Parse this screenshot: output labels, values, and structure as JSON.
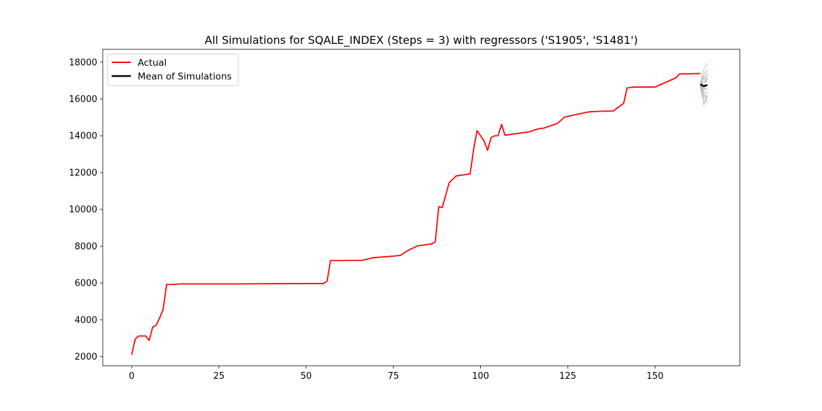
{
  "chart_data": {
    "type": "line",
    "title": "All Simulations for SQALE_INDEX (Steps = 3) with regressors ('S1905', 'S1481')",
    "xlabel": "",
    "ylabel": "",
    "xlim": [
      -8.3,
      174.3
    ],
    "ylim": [
      1500,
      18700
    ],
    "xticks": [
      0,
      25,
      50,
      75,
      100,
      125,
      150
    ],
    "yticks": [
      2000,
      4000,
      6000,
      8000,
      10000,
      12000,
      14000,
      16000,
      18000
    ],
    "legend": {
      "placement": "top-left",
      "entries": [
        "Actual",
        "Mean of Simulations"
      ]
    },
    "series": [
      {
        "name": "Actual",
        "color": "#ff0000",
        "x": [
          0,
          1,
          2,
          3,
          4,
          5,
          6,
          7,
          8,
          9,
          10,
          11,
          12,
          14,
          20,
          30,
          40,
          50,
          55,
          56,
          57,
          60,
          66,
          69,
          75,
          77,
          79,
          82,
          84,
          86,
          87,
          88,
          89,
          91,
          93,
          97,
          98,
          99,
          101,
          102,
          103,
          104,
          105,
          106,
          107,
          110,
          114,
          116,
          117,
          118,
          120,
          122,
          124,
          127,
          131,
          134,
          138,
          141,
          142,
          144,
          150,
          156,
          157,
          163
        ],
        "values": [
          2100,
          2950,
          3120,
          3120,
          3120,
          2880,
          3600,
          3700,
          4100,
          4560,
          5920,
          5920,
          5920,
          5950,
          5950,
          5950,
          5960,
          5970,
          5970,
          6100,
          7220,
          7220,
          7230,
          7370,
          7460,
          7500,
          7750,
          8020,
          8070,
          8130,
          8230,
          10150,
          10100,
          11450,
          11820,
          11930,
          13270,
          14280,
          13720,
          13210,
          13900,
          14000,
          14000,
          14620,
          14030,
          14110,
          14220,
          14350,
          14400,
          14410,
          14540,
          14670,
          15010,
          15140,
          15300,
          15330,
          15350,
          15760,
          16600,
          16650,
          16650,
          17150,
          17360,
          17380
        ]
      },
      {
        "name": "Mean of Simulations",
        "color": "#000000",
        "x": [
          163,
          164,
          165
        ],
        "values": [
          16800,
          16700,
          16760
        ]
      }
    ],
    "simulations": [
      {
        "color": "#7fbfbf",
        "x": [
          163,
          164,
          165
        ],
        "values": [
          16900,
          17600,
          17950
        ]
      },
      {
        "color": "#bf7fbf",
        "x": [
          163,
          164,
          165
        ],
        "values": [
          16850,
          17300,
          17600
        ]
      },
      {
        "color": "#bfbf7f",
        "x": [
          163,
          164,
          165
        ],
        "values": [
          16750,
          17100,
          17350
        ]
      },
      {
        "color": "#7f7fbf",
        "x": [
          163,
          164,
          165
        ],
        "values": [
          16800,
          16900,
          17100
        ]
      },
      {
        "color": "#bf7f7f",
        "x": [
          163,
          164,
          165
        ],
        "values": [
          16700,
          16600,
          16500
        ]
      },
      {
        "color": "#7fbf7f",
        "x": [
          163,
          164,
          165
        ],
        "values": [
          16800,
          16400,
          16300
        ]
      },
      {
        "color": "#bfa07f",
        "x": [
          163,
          164,
          165
        ],
        "values": [
          16650,
          16200,
          16000
        ]
      },
      {
        "color": "#a0a0a0",
        "x": [
          163,
          164,
          165
        ],
        "values": [
          16700,
          16050,
          15800
        ]
      },
      {
        "color": "#7fa0bf",
        "x": [
          163,
          164,
          165
        ],
        "values": [
          16750,
          15700,
          16200
        ]
      },
      {
        "color": "#bf9fbf",
        "x": [
          163,
          164,
          165
        ],
        "values": [
          16800,
          17200,
          16900
        ]
      },
      {
        "color": "#9fbf9f",
        "x": [
          163,
          164,
          165
        ],
        "values": [
          16850,
          16500,
          17400
        ]
      },
      {
        "color": "#bfbfbf",
        "x": [
          163,
          164,
          165
        ],
        "values": [
          16900,
          16300,
          16100
        ]
      }
    ]
  }
}
